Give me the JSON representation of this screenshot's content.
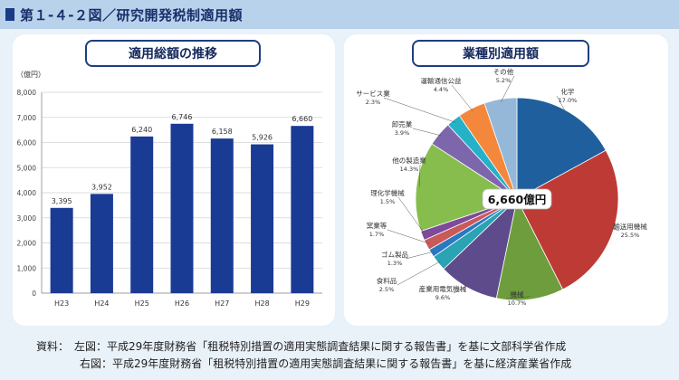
{
  "header": {
    "title": "第１-４-２図／研究開発税制適用額"
  },
  "left_panel": {
    "heading": "適用総額の推移"
  },
  "right_panel": {
    "heading": "業種別適用額"
  },
  "footnotes": {
    "line1": "資料：　左図：平成29年度財務省「租税特別措置の適用実態調査結果に関する報告書」を基に文部科学省作成",
    "line2": "右図：平成29年度財務省「租税特別措置の適用実態調査結果に関する報告書」を基に経済産業省作成"
  },
  "chart_data": [
    {
      "type": "bar",
      "title": "適用総額の推移",
      "ylabel": "（億円）",
      "xlabel": "",
      "categories": [
        "H23",
        "H24",
        "H25",
        "H26",
        "H27",
        "H28",
        "H29"
      ],
      "values": [
        3395,
        3952,
        6240,
        6746,
        6158,
        5926,
        6660
      ],
      "value_labels": [
        "3,395",
        "3,952",
        "6,240",
        "6,746",
        "6,158",
        "5,926",
        "6,660"
      ],
      "ylim": [
        0,
        8000
      ],
      "yticks": [
        0,
        1000,
        2000,
        3000,
        4000,
        5000,
        6000,
        7000,
        8000
      ],
      "ytick_labels": [
        "0",
        "1,000",
        "2,000",
        "3,000",
        "4,000",
        "5,000",
        "6,000",
        "7,000",
        "8,000"
      ],
      "grid": true,
      "bar_color": "#1a3b94"
    },
    {
      "type": "pie",
      "title": "業種別適用額",
      "center_label": "6,660億円",
      "slices": [
        {
          "name": "化学",
          "percent": 17.0,
          "label": "17.0%",
          "color": "#1f5f9e"
        },
        {
          "name": "輸送用機械",
          "percent": 25.5,
          "label": "25.5%",
          "color": "#be3b35"
        },
        {
          "name": "機械",
          "percent": 10.7,
          "label": "10.7%",
          "color": "#6e9d3d"
        },
        {
          "name": "産業用電気機械",
          "percent": 9.6,
          "label": "9.6%",
          "color": "#5e4b8c"
        },
        {
          "name": "食料品",
          "percent": 2.5,
          "label": "2.5%",
          "color": "#2aa3b4"
        },
        {
          "name": "ゴム製品",
          "percent": 1.3,
          "label": "1.3%",
          "color": "#2c77c2"
        },
        {
          "name": "窯業等",
          "percent": 1.7,
          "label": "1.7%",
          "color": "#c85a5a"
        },
        {
          "name": "理化学機械",
          "percent": 1.5,
          "label": "1.5%",
          "color": "#7e4a9a"
        },
        {
          "name": "他の製造業",
          "percent": 14.3,
          "label": "14.3%",
          "color": "#86bd4d"
        },
        {
          "name": "卸売業",
          "percent": 3.9,
          "label": "3.9%",
          "color": "#7e66ad"
        },
        {
          "name": "サービス業",
          "percent": 2.3,
          "label": "2.3%",
          "color": "#25b1c7"
        },
        {
          "name": "運輸通信公益",
          "percent": 4.4,
          "label": "4.4%",
          "color": "#f3883c"
        },
        {
          "name": "その他",
          "percent": 5.2,
          "label": "5.2%",
          "color": "#95b8d8"
        }
      ]
    }
  ]
}
